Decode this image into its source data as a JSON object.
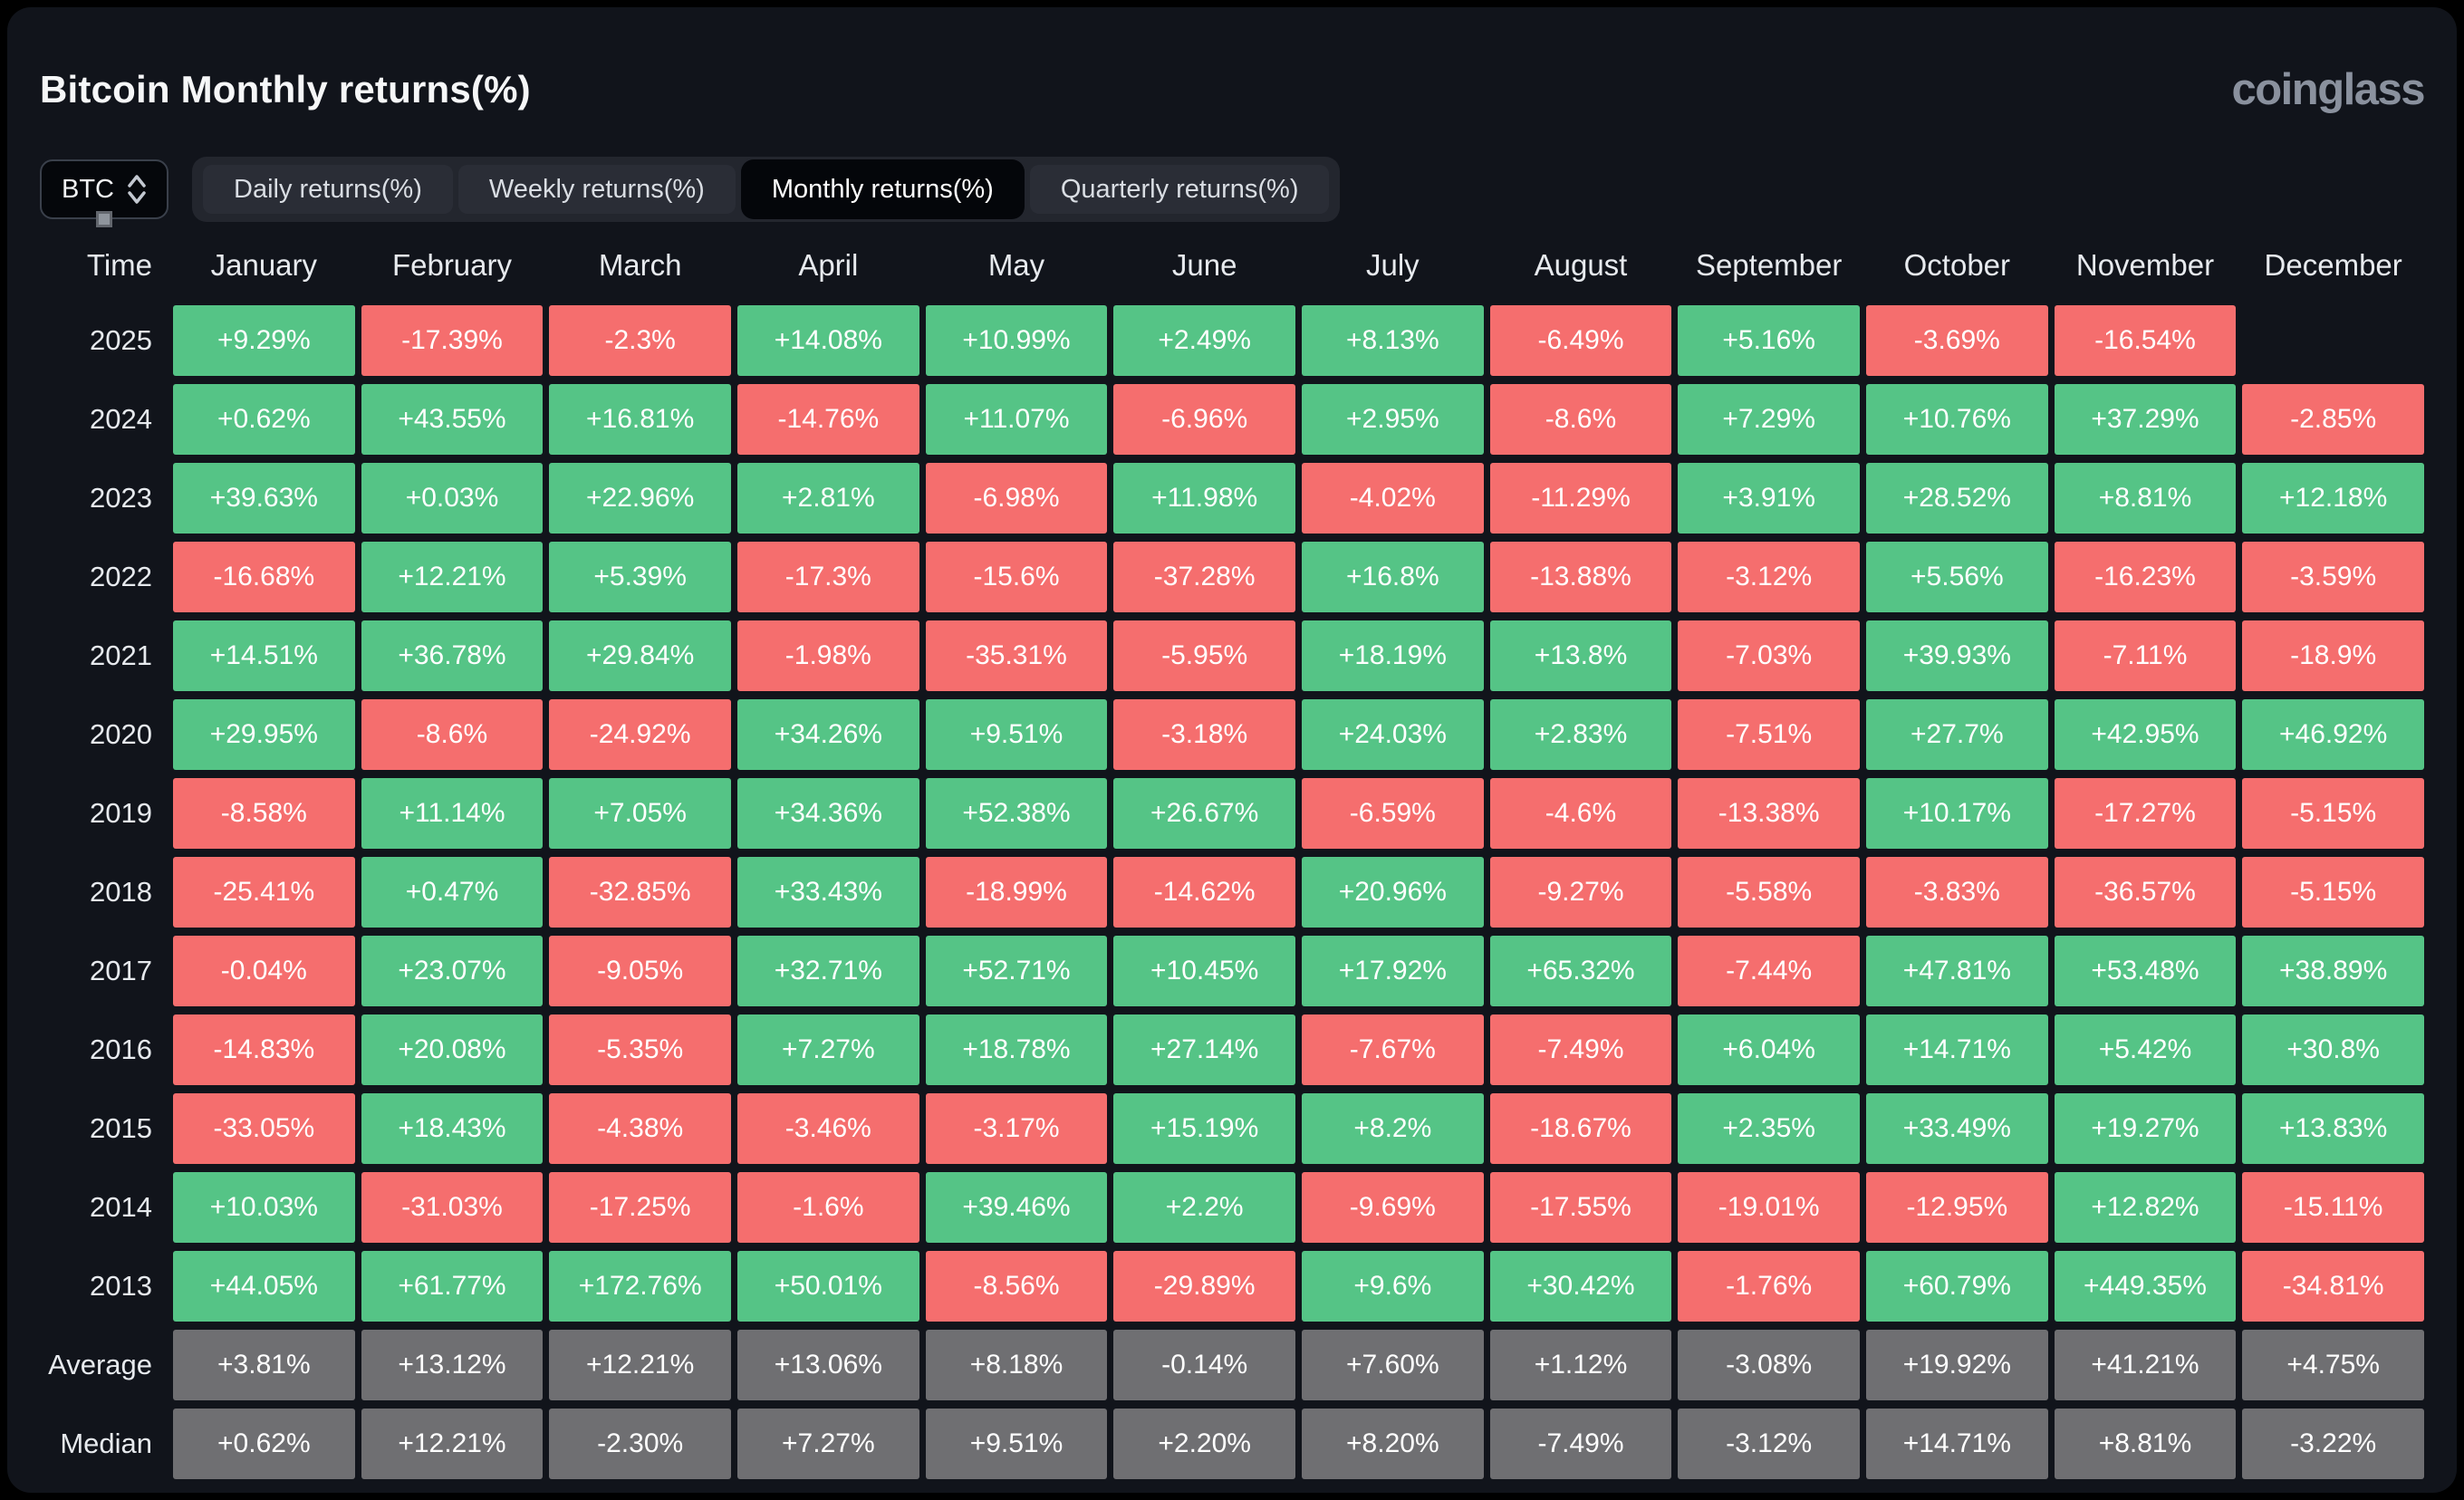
{
  "header": {
    "title": "Bitcoin Monthly returns(%)",
    "logo": "coinglass"
  },
  "controls": {
    "coin_selector": "BTC",
    "tabs": [
      {
        "label": "Daily returns(%)",
        "active": false
      },
      {
        "label": "Weekly returns(%)",
        "active": false
      },
      {
        "label": "Monthly returns(%)",
        "active": true
      },
      {
        "label": "Quarterly returns(%)",
        "active": false
      }
    ]
  },
  "table": {
    "time_label": "Time",
    "months": [
      "January",
      "February",
      "March",
      "April",
      "May",
      "June",
      "July",
      "August",
      "September",
      "October",
      "November",
      "December"
    ],
    "rows": [
      {
        "label": "2025",
        "type": "year",
        "values": [
          "+9.29%",
          "-17.39%",
          "-2.3%",
          "+14.08%",
          "+10.99%",
          "+2.49%",
          "+8.13%",
          "-6.49%",
          "+5.16%",
          "-3.69%",
          "-16.54%",
          null
        ]
      },
      {
        "label": "2024",
        "type": "year",
        "values": [
          "+0.62%",
          "+43.55%",
          "+16.81%",
          "-14.76%",
          "+11.07%",
          "-6.96%",
          "+2.95%",
          "-8.6%",
          "+7.29%",
          "+10.76%",
          "+37.29%",
          "-2.85%"
        ]
      },
      {
        "label": "2023",
        "type": "year",
        "values": [
          "+39.63%",
          "+0.03%",
          "+22.96%",
          "+2.81%",
          "-6.98%",
          "+11.98%",
          "-4.02%",
          "-11.29%",
          "+3.91%",
          "+28.52%",
          "+8.81%",
          "+12.18%"
        ]
      },
      {
        "label": "2022",
        "type": "year",
        "values": [
          "-16.68%",
          "+12.21%",
          "+5.39%",
          "-17.3%",
          "-15.6%",
          "-37.28%",
          "+16.8%",
          "-13.88%",
          "-3.12%",
          "+5.56%",
          "-16.23%",
          "-3.59%"
        ]
      },
      {
        "label": "2021",
        "type": "year",
        "values": [
          "+14.51%",
          "+36.78%",
          "+29.84%",
          "-1.98%",
          "-35.31%",
          "-5.95%",
          "+18.19%",
          "+13.8%",
          "-7.03%",
          "+39.93%",
          "-7.11%",
          "-18.9%"
        ]
      },
      {
        "label": "2020",
        "type": "year",
        "values": [
          "+29.95%",
          "-8.6%",
          "-24.92%",
          "+34.26%",
          "+9.51%",
          "-3.18%",
          "+24.03%",
          "+2.83%",
          "-7.51%",
          "+27.7%",
          "+42.95%",
          "+46.92%"
        ]
      },
      {
        "label": "2019",
        "type": "year",
        "values": [
          "-8.58%",
          "+11.14%",
          "+7.05%",
          "+34.36%",
          "+52.38%",
          "+26.67%",
          "-6.59%",
          "-4.6%",
          "-13.38%",
          "+10.17%",
          "-17.27%",
          "-5.15%"
        ]
      },
      {
        "label": "2018",
        "type": "year",
        "values": [
          "-25.41%",
          "+0.47%",
          "-32.85%",
          "+33.43%",
          "-18.99%",
          "-14.62%",
          "+20.96%",
          "-9.27%",
          "-5.58%",
          "-3.83%",
          "-36.57%",
          "-5.15%"
        ]
      },
      {
        "label": "2017",
        "type": "year",
        "values": [
          "-0.04%",
          "+23.07%",
          "-9.05%",
          "+32.71%",
          "+52.71%",
          "+10.45%",
          "+17.92%",
          "+65.32%",
          "-7.44%",
          "+47.81%",
          "+53.48%",
          "+38.89%"
        ]
      },
      {
        "label": "2016",
        "type": "year",
        "values": [
          "-14.83%",
          "+20.08%",
          "-5.35%",
          "+7.27%",
          "+18.78%",
          "+27.14%",
          "-7.67%",
          "-7.49%",
          "+6.04%",
          "+14.71%",
          "+5.42%",
          "+30.8%"
        ]
      },
      {
        "label": "2015",
        "type": "year",
        "values": [
          "-33.05%",
          "+18.43%",
          "-4.38%",
          "-3.46%",
          "-3.17%",
          "+15.19%",
          "+8.2%",
          "-18.67%",
          "+2.35%",
          "+33.49%",
          "+19.27%",
          "+13.83%"
        ]
      },
      {
        "label": "2014",
        "type": "year",
        "values": [
          "+10.03%",
          "-31.03%",
          "-17.25%",
          "-1.6%",
          "+39.46%",
          "+2.2%",
          "-9.69%",
          "-17.55%",
          "-19.01%",
          "-12.95%",
          "+12.82%",
          "-15.11%"
        ]
      },
      {
        "label": "2013",
        "type": "year",
        "values": [
          "+44.05%",
          "+61.77%",
          "+172.76%",
          "+50.01%",
          "-8.56%",
          "-29.89%",
          "+9.6%",
          "+30.42%",
          "-1.76%",
          "+60.79%",
          "+449.35%",
          "-34.81%"
        ]
      },
      {
        "label": "Average",
        "type": "summary",
        "values": [
          "+3.81%",
          "+13.12%",
          "+12.21%",
          "+13.06%",
          "+8.18%",
          "-0.14%",
          "+7.60%",
          "+1.12%",
          "-3.08%",
          "+19.92%",
          "+41.21%",
          "+4.75%"
        ]
      },
      {
        "label": "Median",
        "type": "summary",
        "values": [
          "+0.62%",
          "+12.21%",
          "-2.30%",
          "+7.27%",
          "+9.51%",
          "+2.20%",
          "+8.20%",
          "-7.49%",
          "-3.12%",
          "+14.71%",
          "+8.81%",
          "-3.22%"
        ]
      }
    ]
  },
  "colors": {
    "positive": "#55c486",
    "negative": "#f56e6e",
    "neutral": "#6f6f72",
    "panel_background": "#11141b",
    "active_tab": "#04060a"
  }
}
